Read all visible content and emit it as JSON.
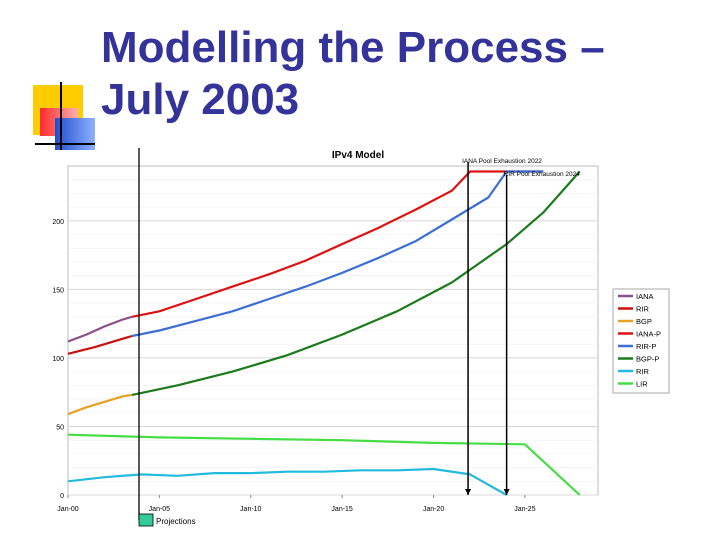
{
  "slide": {
    "title_line1": "Modelling the Process –",
    "title_line2": "July 2003"
  },
  "colors": {
    "title": "#333399",
    "deco_yellow": "#ffcc00",
    "deco_red": "#ff3333",
    "deco_blue": "#3366ff"
  },
  "chart_data": {
    "type": "line",
    "title": "IPv4 Model",
    "x_ticks": [
      "Jan-00",
      "Jan-05",
      "Jan-10",
      "Jan-15",
      "Jan-20",
      "Jan-25"
    ],
    "y_ticks": [
      0,
      50,
      100,
      150,
      200
    ],
    "xlim": [
      2000,
      2029
    ],
    "ylim": [
      0,
      240
    ],
    "grid": "horizontal",
    "legend_position": "right",
    "series": [
      {
        "name": "IANA",
        "color": "#8b4f8b",
        "x": [
          2000,
          2001,
          2002,
          2003,
          2003.5
        ],
        "y": [
          112,
          117,
          123,
          128,
          130
        ]
      },
      {
        "name": "RIR",
        "color": "#cc1111",
        "x": [
          2000,
          2001.5,
          2003,
          2003.5
        ],
        "y": [
          103,
          108,
          114,
          116
        ]
      },
      {
        "name": "BGP",
        "color": "#e8a020",
        "x": [
          2000,
          2001,
          2002,
          2003,
          2003.5
        ],
        "y": [
          59,
          64,
          68,
          72,
          73
        ]
      },
      {
        "name": "IANA-P",
        "color": "#dd1111",
        "x": [
          2003.5,
          2005,
          2007,
          2009,
          2011,
          2013,
          2015,
          2017,
          2019,
          2021,
          2022,
          2026
        ],
        "y": [
          130,
          134,
          143,
          152,
          161,
          171,
          183,
          195,
          208,
          222,
          236,
          236
        ]
      },
      {
        "name": "RIR-P",
        "color": "#3b6fd6",
        "x": [
          2003.5,
          2005,
          2007,
          2009,
          2011,
          2013,
          2015,
          2017,
          2019,
          2021,
          2023,
          2024,
          2026
        ],
        "y": [
          116,
          120,
          127,
          134,
          143,
          152,
          162,
          173,
          185,
          201,
          217,
          236,
          236
        ]
      },
      {
        "name": "BGP-P",
        "color": "#1b7a1b",
        "x": [
          2003.5,
          2006,
          2009,
          2012,
          2015,
          2018,
          2021,
          2024,
          2026,
          2028
        ],
        "y": [
          73,
          80,
          90,
          102,
          117,
          134,
          155,
          183,
          206,
          236
        ]
      },
      {
        "name": "RIR",
        "color": "#22bbdd",
        "x": [
          2000,
          2002,
          2004,
          2006,
          2008,
          2010,
          2012,
          2014,
          2016,
          2018,
          2020,
          2022,
          2024
        ],
        "y": [
          10,
          13,
          15,
          14,
          16,
          16,
          17,
          17,
          18,
          18,
          19,
          15,
          0
        ]
      },
      {
        "name": "LIR",
        "color": "#44dd44",
        "x": [
          2000,
          2005,
          2010,
          2015,
          2020,
          2025,
          2028
        ],
        "y": [
          44,
          42,
          41,
          40,
          38,
          37,
          0
        ]
      }
    ],
    "annotations": [
      {
        "text": "IANA Pool Exhaustion 2022",
        "x": 2022
      },
      {
        "text": "RIR Pool Exhaustion 2024",
        "x": 2024
      },
      {
        "text": "Projections",
        "x": 2004
      }
    ]
  }
}
